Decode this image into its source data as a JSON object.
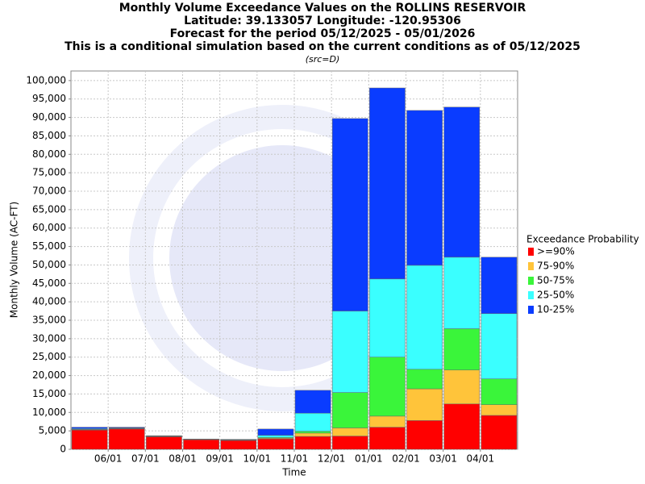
{
  "chart_data": {
    "type": "stacked_bar",
    "title": "Monthly Volume Exceedance Values on the ROLLINS RESERVOIR",
    "subtitles": [
      "Latitude: 39.133057 Longitude: -120.95306",
      "Forecast for the period 05/12/2025 - 05/01/2026",
      "This is a conditional simulation based on the current conditions as of 05/12/2025"
    ],
    "note": "(src=D)",
    "x_label": "Time",
    "y_label": "Monthly Volume (AC-FT)",
    "xticks": [
      "06/01",
      "07/01",
      "08/01",
      "09/01",
      "10/01",
      "11/01",
      "12/01",
      "01/01",
      "02/01",
      "03/01",
      "04/01"
    ],
    "legend_title": "Exceedance Probability",
    "series": [
      {
        "name": ">=90%",
        "color": "#ff0000",
        "values": [
          5200,
          5500,
          3400,
          2600,
          2400,
          2800,
          3500,
          3600,
          6000,
          7800,
          12300,
          9200
        ]
      },
      {
        "name": "75-90%",
        "color": "#ffc43a",
        "values": [
          100,
          100,
          100,
          50,
          50,
          200,
          900,
          2200,
          3000,
          8600,
          9200,
          2900
        ]
      },
      {
        "name": "50-75%",
        "color": "#3af53a",
        "values": [
          100,
          100,
          100,
          50,
          50,
          200,
          500,
          9600,
          16000,
          5300,
          11200,
          7000
        ]
      },
      {
        "name": "25-50%",
        "color": "#3affff",
        "values": [
          200,
          100,
          50,
          50,
          100,
          600,
          4900,
          22100,
          21200,
          28200,
          19400,
          17700
        ]
      },
      {
        "name": "10-25%",
        "color": "#0a3cff",
        "values": [
          400,
          200,
          50,
          50,
          100,
          1700,
          6200,
          52200,
          51800,
          42000,
          40700,
          15300
        ]
      }
    ],
    "ylim": [
      0,
      102600
    ],
    "yticks": [
      0,
      {
        "value": 5000,
        "label": "5,000"
      },
      {
        "value": 10000,
        "label": "10,000"
      },
      {
        "value": 15000,
        "label": "15,000"
      },
      {
        "value": 20000,
        "label": "20,000"
      },
      {
        "value": 25000,
        "label": "25,000"
      },
      {
        "value": 30000,
        "label": "30,000"
      },
      {
        "value": 35000,
        "label": "35,000"
      },
      {
        "value": 40000,
        "label": "40,000"
      },
      {
        "value": 45000,
        "label": "45,000"
      },
      {
        "value": 50000,
        "label": "50,000"
      },
      {
        "value": 55000,
        "label": "55,000"
      },
      {
        "value": 60000,
        "label": "60,000"
      },
      {
        "value": 65000,
        "label": "65,000"
      },
      {
        "value": 70000,
        "label": "70,000"
      },
      {
        "value": 75000,
        "label": "75,000"
      },
      {
        "value": 80000,
        "label": "80,000"
      },
      {
        "value": 85000,
        "label": "85,000"
      },
      {
        "value": 90000,
        "label": "90,000"
      },
      {
        "value": 95000,
        "label": "95,000"
      },
      {
        "value": 100000,
        "label": "100,000"
      }
    ],
    "grid": true
  }
}
